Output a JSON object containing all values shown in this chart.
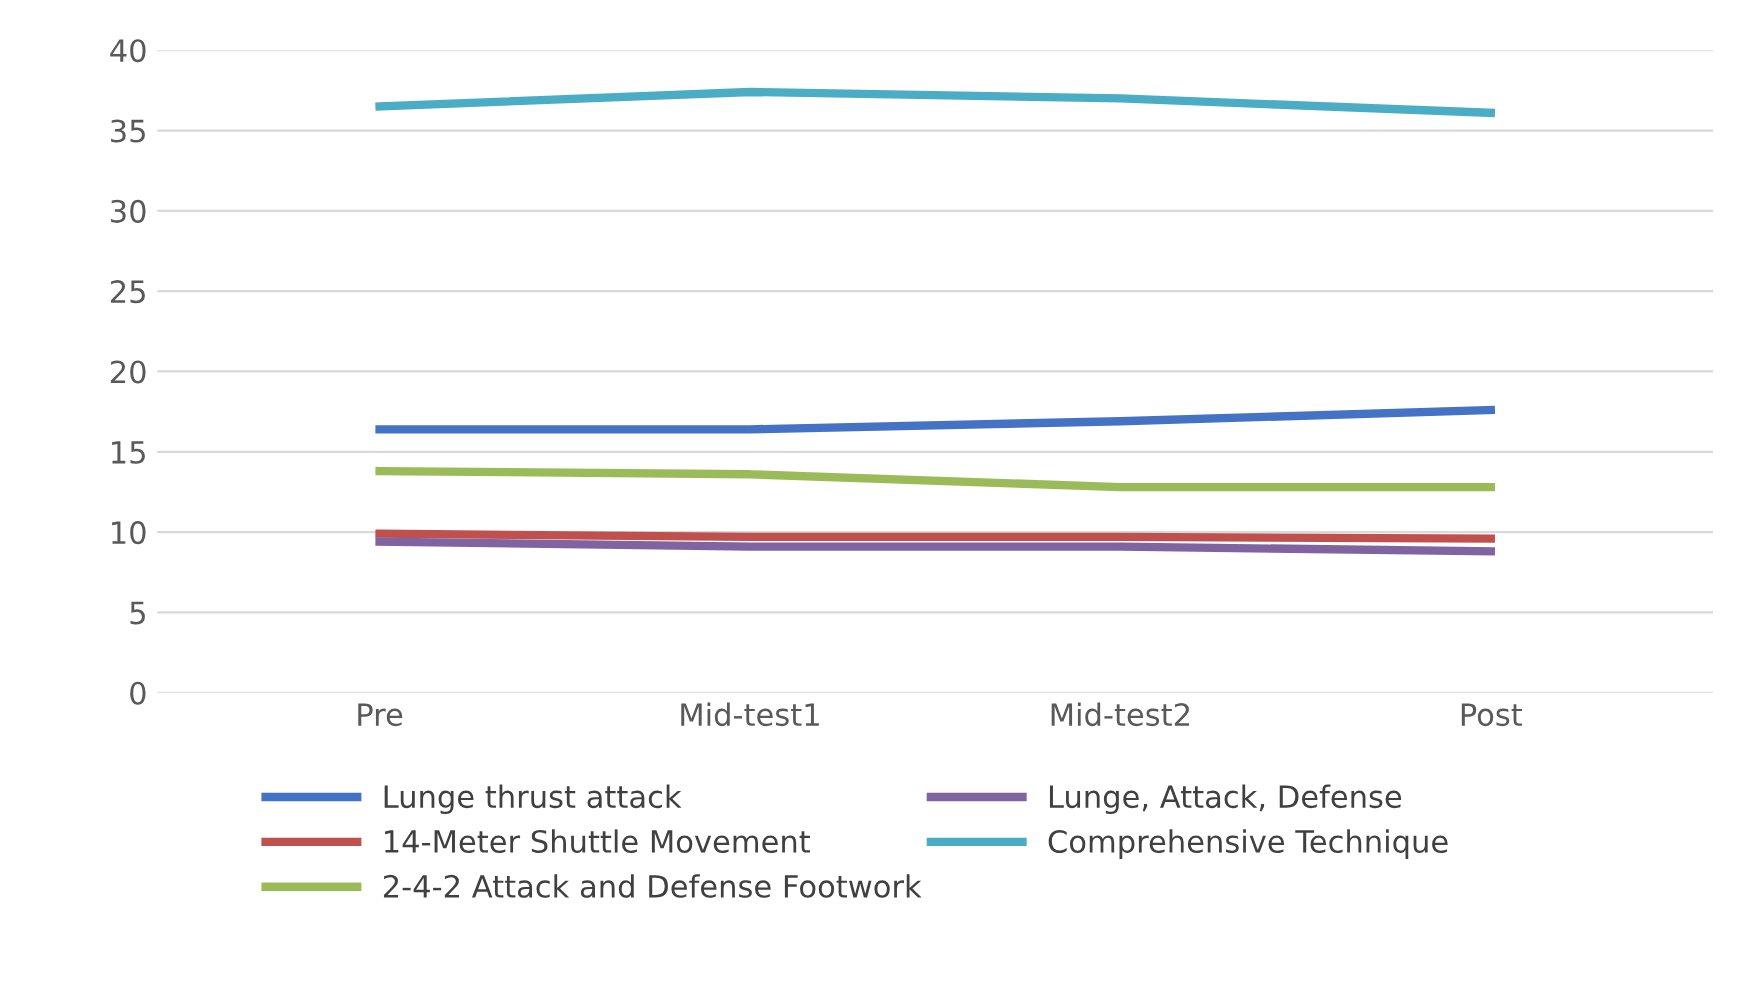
{
  "chart_data": {
    "type": "line",
    "categories": [
      "Pre",
      "Mid-test1",
      "Mid-test2",
      "Post"
    ],
    "series": [
      {
        "name": "Lunge thrust attack",
        "color": "#4472c4",
        "values": [
          16.4,
          16.4,
          16.9,
          17.6
        ]
      },
      {
        "name": "14-Meter Shuttle Movement",
        "color": "#c0504d",
        "values": [
          9.9,
          9.7,
          9.7,
          9.6
        ]
      },
      {
        "name": "2-4-2 Attack and Defense Footwork",
        "color": "#9bbb59",
        "values": [
          13.8,
          13.6,
          12.8,
          12.8
        ]
      },
      {
        "name": "Lunge, Attack, Defense",
        "color": "#8064a2",
        "values": [
          9.4,
          9.1,
          9.1,
          8.8
        ]
      },
      {
        "name": "Comprehensive Technique",
        "color": "#4bacc6",
        "values": [
          36.5,
          37.4,
          37.0,
          36.1
        ]
      }
    ],
    "ylim": [
      0,
      40
    ],
    "yticks": [
      0,
      5,
      10,
      15,
      20,
      25,
      30,
      35,
      40
    ],
    "grid": "y",
    "legend": "bottom",
    "marker": "none",
    "line_style": "solid"
  }
}
